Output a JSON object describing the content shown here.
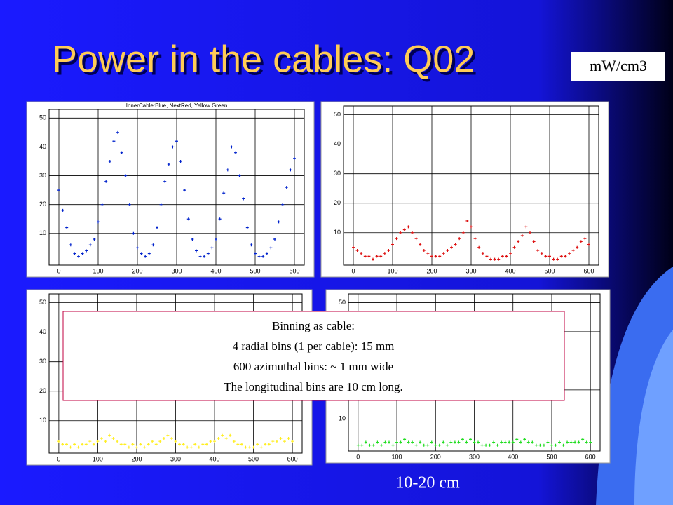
{
  "title": "Power in the cables: Q02",
  "unit_label": "mW/cm3",
  "note": [
    "Binning as cable:",
    "4 radial bins (1 per cable): 15 mm",
    "600 azimuthal bins: ~ 1 mm wide",
    "The longitudinal bins are 10 cm long."
  ],
  "footer": "10-20 cm",
  "chart_data": [
    {
      "type": "scatter",
      "title": "InnerCable:Blue, NextRed, Yellow Green",
      "color": "#0022cc",
      "x": [
        0,
        10,
        20,
        30,
        40,
        50,
        60,
        70,
        80,
        90,
        100,
        110,
        120,
        130,
        140,
        150,
        160,
        170,
        180,
        190,
        200,
        210,
        220,
        230,
        240,
        250,
        260,
        270,
        280,
        290,
        300,
        310,
        320,
        330,
        340,
        350,
        360,
        370,
        380,
        390,
        400,
        410,
        420,
        430,
        440,
        450,
        460,
        470,
        480,
        490,
        500,
        510,
        520,
        530,
        540,
        550,
        560,
        570,
        580,
        590,
        600
      ],
      "values": [
        25,
        18,
        12,
        6,
        3,
        2,
        3,
        4,
        6,
        8,
        14,
        20,
        28,
        35,
        42,
        45,
        38,
        30,
        20,
        10,
        5,
        3,
        2,
        3,
        6,
        12,
        20,
        28,
        34,
        40,
        42,
        35,
        25,
        15,
        8,
        4,
        2,
        2,
        3,
        5,
        8,
        15,
        24,
        32,
        40,
        38,
        30,
        22,
        12,
        6,
        3,
        2,
        2,
        3,
        5,
        8,
        14,
        20,
        26,
        32,
        36
      ],
      "xlim": [
        -25,
        625
      ],
      "ylim": [
        -1,
        53
      ],
      "xticks": [
        0,
        100,
        200,
        300,
        400,
        500,
        600
      ],
      "yticks": [
        10,
        20,
        30,
        40,
        50
      ],
      "grid": true
    },
    {
      "type": "scatter",
      "color": "#dd1111",
      "x": [
        0,
        10,
        20,
        30,
        40,
        50,
        60,
        70,
        80,
        90,
        100,
        110,
        120,
        130,
        140,
        150,
        160,
        170,
        180,
        190,
        200,
        210,
        220,
        230,
        240,
        250,
        260,
        270,
        280,
        290,
        300,
        310,
        320,
        330,
        340,
        350,
        360,
        370,
        380,
        390,
        400,
        410,
        420,
        430,
        440,
        450,
        460,
        470,
        480,
        490,
        500,
        510,
        520,
        530,
        540,
        550,
        560,
        570,
        580,
        590,
        600
      ],
      "values": [
        5,
        4,
        3,
        2,
        2,
        1,
        2,
        2,
        3,
        4,
        6,
        8,
        10,
        11,
        12,
        10,
        8,
        6,
        4,
        3,
        2,
        2,
        2,
        3,
        4,
        5,
        6,
        8,
        10,
        14,
        12,
        8,
        5,
        3,
        2,
        1,
        1,
        1,
        2,
        2,
        3,
        5,
        7,
        9,
        12,
        10,
        7,
        4,
        3,
        2,
        2,
        1,
        1,
        2,
        2,
        3,
        4,
        5,
        7,
        8,
        6
      ],
      "xlim": [
        -25,
        625
      ],
      "ylim": [
        -1,
        53
      ],
      "xticks": [
        0,
        100,
        200,
        300,
        400,
        500,
        600
      ],
      "yticks": [
        10,
        20,
        30,
        40,
        50
      ],
      "grid": true
    },
    {
      "type": "scatter",
      "color": "#ffee22",
      "x": [
        0,
        10,
        20,
        30,
        40,
        50,
        60,
        70,
        80,
        90,
        100,
        110,
        120,
        130,
        140,
        150,
        160,
        170,
        180,
        190,
        200,
        210,
        220,
        230,
        240,
        250,
        260,
        270,
        280,
        290,
        300,
        310,
        320,
        330,
        340,
        350,
        360,
        370,
        380,
        390,
        400,
        410,
        420,
        430,
        440,
        450,
        460,
        470,
        480,
        490,
        500,
        510,
        520,
        530,
        540,
        550,
        560,
        570,
        580,
        590,
        600
      ],
      "values": [
        3,
        2,
        2,
        1,
        2,
        1,
        2,
        2,
        3,
        2,
        3,
        4,
        3,
        5,
        4,
        3,
        2,
        2,
        1,
        2,
        1,
        2,
        1,
        2,
        3,
        2,
        3,
        4,
        5,
        4,
        3,
        2,
        2,
        1,
        1,
        2,
        1,
        2,
        2,
        3,
        3,
        4,
        5,
        4,
        5,
        3,
        2,
        2,
        1,
        1,
        1,
        2,
        1,
        2,
        2,
        3,
        3,
        4,
        3,
        4,
        3
      ],
      "xlim": [
        -25,
        625
      ],
      "ylim": [
        -1,
        53
      ],
      "xticks": [
        0,
        100,
        200,
        300,
        400,
        500,
        600
      ],
      "yticks": [
        10,
        20,
        30,
        40,
        50
      ],
      "grid": true
    },
    {
      "type": "scatter",
      "color": "#22dd22",
      "x": [
        0,
        10,
        20,
        30,
        40,
        50,
        60,
        70,
        80,
        90,
        100,
        110,
        120,
        130,
        140,
        150,
        160,
        170,
        180,
        190,
        200,
        210,
        220,
        230,
        240,
        250,
        260,
        270,
        280,
        290,
        300,
        310,
        320,
        330,
        340,
        350,
        360,
        370,
        380,
        390,
        400,
        410,
        420,
        430,
        440,
        450,
        460,
        470,
        480,
        490,
        500,
        510,
        520,
        530,
        540,
        550,
        560,
        570,
        580,
        590,
        600
      ],
      "values": [
        1,
        1,
        2,
        1,
        1,
        2,
        1,
        2,
        2,
        1,
        2,
        2,
        3,
        2,
        2,
        1,
        2,
        1,
        1,
        2,
        1,
        1,
        2,
        1,
        2,
        2,
        2,
        3,
        2,
        3,
        2,
        2,
        1,
        1,
        1,
        2,
        1,
        2,
        2,
        2,
        2,
        3,
        2,
        3,
        2,
        2,
        1,
        1,
        1,
        2,
        1,
        1,
        2,
        1,
        2,
        2,
        2,
        2,
        3,
        2,
        2
      ],
      "xlim": [
        -25,
        625
      ],
      "ylim": [
        -1,
        53
      ],
      "xticks": [
        0,
        100,
        200,
        300,
        400,
        500,
        600
      ],
      "yticks": [
        10,
        20,
        30,
        40,
        50
      ],
      "grid": true
    }
  ]
}
